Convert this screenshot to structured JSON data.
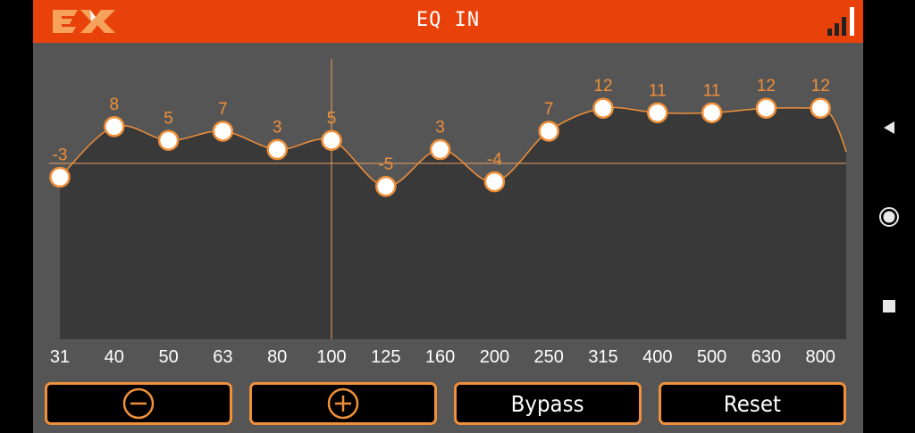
{
  "header": {
    "title": "EQ IN",
    "logo_text": "EX",
    "signal_icon": "signal-bars-icon"
  },
  "colors": {
    "header": "#E8420A",
    "accent": "#F0903A",
    "panel": "#555555",
    "fill": "#3A3939"
  },
  "chart_data": {
    "type": "line",
    "categories": [
      "31",
      "40",
      "50",
      "63",
      "80",
      "100",
      "125",
      "160",
      "200",
      "250",
      "315",
      "400",
      "500",
      "630",
      "800"
    ],
    "series": [
      {
        "values": [
          -3,
          8,
          5,
          7,
          3,
          5,
          -5,
          3,
          -4,
          7,
          12,
          11,
          11,
          12,
          12
        ]
      }
    ],
    "ylim": [
      -12,
      12
    ],
    "selected_band": "100",
    "grid": false
  },
  "buttons": {
    "minus_icon": "minus-circle-icon",
    "plus_icon": "plus-circle-icon",
    "bypass": "Bypass",
    "reset": "Reset"
  },
  "navbar": {
    "back_icon": "back-triangle-icon",
    "home_icon": "home-circle-icon",
    "recents_icon": "recents-square-icon"
  }
}
